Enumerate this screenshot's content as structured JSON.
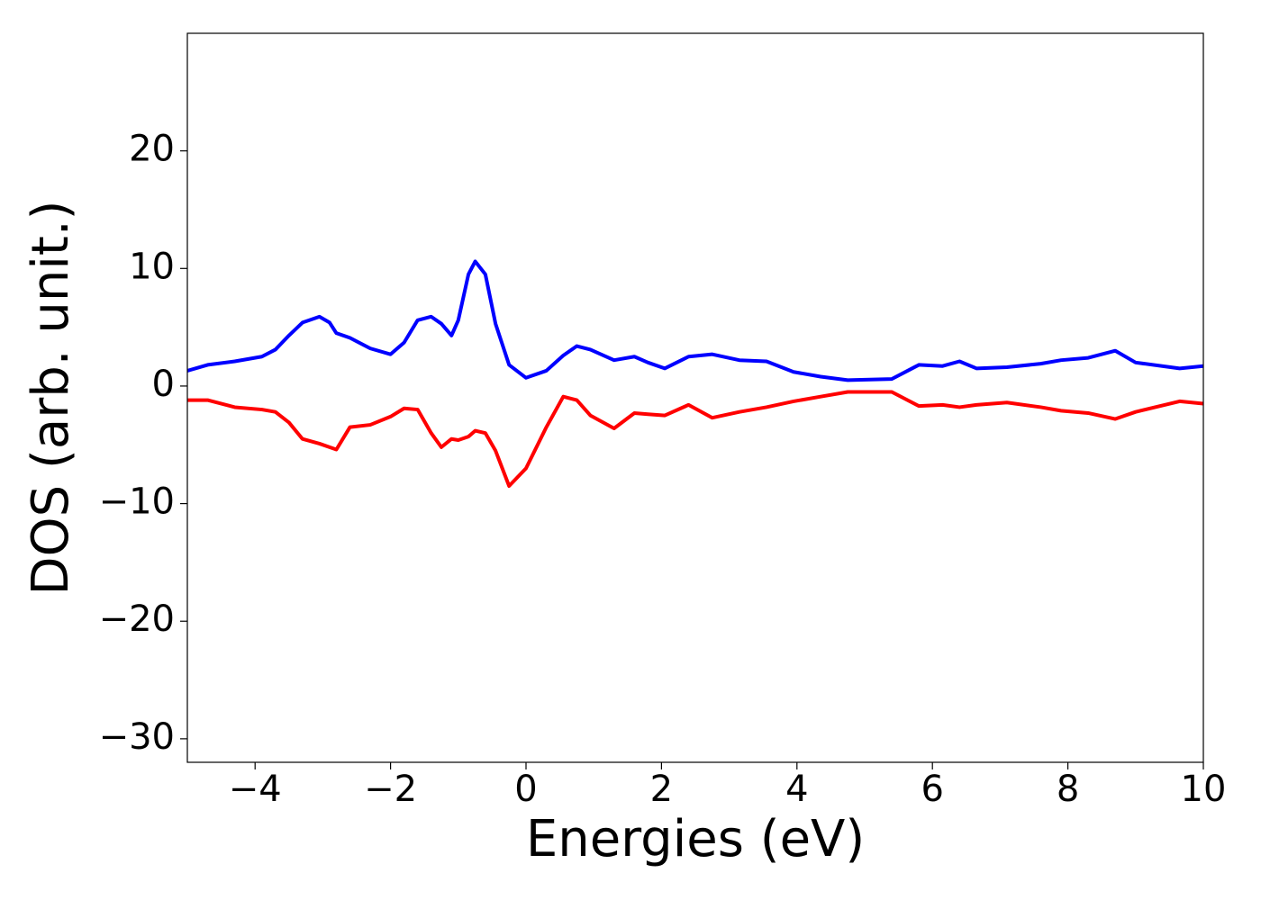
{
  "chart_data": {
    "type": "line",
    "xlabel": "Energies (eV)",
    "ylabel": "DOS (arb. unit.)",
    "xlim": [
      -5,
      10
    ],
    "ylim": [
      -32,
      30
    ],
    "xticks": [
      {
        "value": -4,
        "label": "−4"
      },
      {
        "value": -2,
        "label": "−2"
      },
      0,
      2,
      4,
      6,
      8,
      10
    ],
    "yticks": [
      {
        "value": -30,
        "label": "−30"
      },
      {
        "value": -20,
        "label": "−20"
      },
      {
        "value": -10,
        "label": "−10"
      },
      0,
      10,
      20
    ],
    "x": [
      -5,
      -4.7,
      -4.3,
      -3.9,
      -3.7,
      -3.5,
      -3.3,
      -3.05,
      -2.9,
      -2.8,
      -2.6,
      -2.3,
      -2.0,
      -1.8,
      -1.6,
      -1.4,
      -1.25,
      -1.1,
      -1.0,
      -0.85,
      -0.75,
      -0.6,
      -0.45,
      -0.25,
      0,
      0.3,
      0.55,
      0.75,
      0.95,
      1.3,
      1.6,
      1.8,
      2.05,
      2.4,
      2.75,
      3.15,
      3.55,
      3.95,
      4.35,
      4.75,
      5.4,
      5.8,
      6.15,
      6.4,
      6.65,
      7.1,
      7.6,
      7.9,
      8.3,
      8.7,
      9.0,
      9.65,
      10
    ],
    "series": [
      {
        "color": "#0000ff",
        "values": [
          1.3,
          1.8,
          2.1,
          2.5,
          3.1,
          4.3,
          5.4,
          5.9,
          5.4,
          4.5,
          4.1,
          3.2,
          2.7,
          3.7,
          5.6,
          5.9,
          5.3,
          4.3,
          5.6,
          9.5,
          10.6,
          9.5,
          5.3,
          1.8,
          0.7,
          1.3,
          2.6,
          3.4,
          3.1,
          2.2,
          2.5,
          2.0,
          1.5,
          2.5,
          2.7,
          2.2,
          2.1,
          1.2,
          0.8,
          0.5,
          0.6,
          1.8,
          1.7,
          2.1,
          1.5,
          1.6,
          1.9,
          2.2,
          2.4,
          3.0,
          2.0,
          1.5,
          1.7
        ]
      },
      {
        "color": "#ff0000",
        "values": [
          -1.2,
          -1.2,
          -1.8,
          -2.0,
          -2.2,
          -3.1,
          -4.5,
          -4.9,
          -5.2,
          -5.4,
          -3.5,
          -3.3,
          -2.6,
          -1.9,
          -2.0,
          -4.0,
          -5.2,
          -4.5,
          -4.6,
          -4.3,
          -3.8,
          -4.0,
          -5.5,
          -8.5,
          -7.0,
          -3.5,
          -0.9,
          -1.2,
          -2.5,
          -3.6,
          -2.3,
          -2.4,
          -2.5,
          -1.6,
          -2.7,
          -2.2,
          -1.8,
          -1.3,
          -0.9,
          -0.5,
          -0.5,
          -1.7,
          -1.6,
          -1.8,
          -1.6,
          -1.4,
          -1.8,
          -2.1,
          -2.3,
          -2.8,
          -2.2,
          -1.3,
          -1.5
        ]
      }
    ]
  }
}
